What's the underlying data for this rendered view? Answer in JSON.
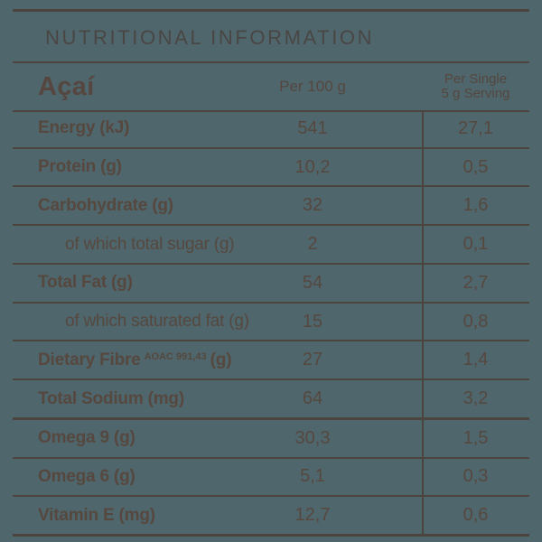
{
  "colors": {
    "background": "#4E666C",
    "ink": "#4C443F",
    "title_text": "#4A4644",
    "body_text": "#56483F"
  },
  "title": "NUTRITIONAL INFORMATION",
  "table": {
    "product": "Açaí",
    "columns": {
      "per_100": "Per 100 g",
      "per_serving_line1": "Per Single",
      "per_serving_line2": "5 g Serving"
    },
    "rows": [
      {
        "label": "Energy (kJ)",
        "sup": "",
        "suffix": "",
        "per100": "541",
        "serving": "27,1",
        "indent": false,
        "thick": false
      },
      {
        "label": "Protein (g)",
        "sup": "",
        "suffix": "",
        "per100": "10,2",
        "serving": "0,5",
        "indent": false,
        "thick": false
      },
      {
        "label": "Carbohydrate (g)",
        "sup": "",
        "suffix": "",
        "per100": "32",
        "serving": "1,6",
        "indent": false,
        "thick": false
      },
      {
        "label": "of which total sugar (g)",
        "sup": "",
        "suffix": "",
        "per100": "2",
        "serving": "0,1",
        "indent": true,
        "thick": false
      },
      {
        "label": "Total Fat (g)",
        "sup": "",
        "suffix": "",
        "per100": "54",
        "serving": "2,7",
        "indent": false,
        "thick": false
      },
      {
        "label": "of which saturated fat (g)",
        "sup": "",
        "suffix": "",
        "per100": "15",
        "serving": "0,8",
        "indent": true,
        "thick": false
      },
      {
        "label": "Dietary Fibre",
        "sup": "AOAC 991,43",
        "suffix": "(g)",
        "per100": "27",
        "serving": "1,4",
        "indent": false,
        "thick": false
      },
      {
        "label": "Total Sodium (mg)",
        "sup": "",
        "suffix": "",
        "per100": "64",
        "serving": "3,2",
        "indent": false,
        "thick": true
      },
      {
        "label": "Omega 9 (g)",
        "sup": "",
        "suffix": "",
        "per100": "30,3",
        "serving": "1,5",
        "indent": false,
        "thick": false
      },
      {
        "label": "Omega 6 (g)",
        "sup": "",
        "suffix": "",
        "per100": "5,1",
        "serving": "0,3",
        "indent": false,
        "thick": false
      },
      {
        "label": "Vitamin E (mg)",
        "sup": "",
        "suffix": "",
        "per100": "12,7",
        "serving": "0,6",
        "indent": false,
        "thick": false
      }
    ]
  }
}
